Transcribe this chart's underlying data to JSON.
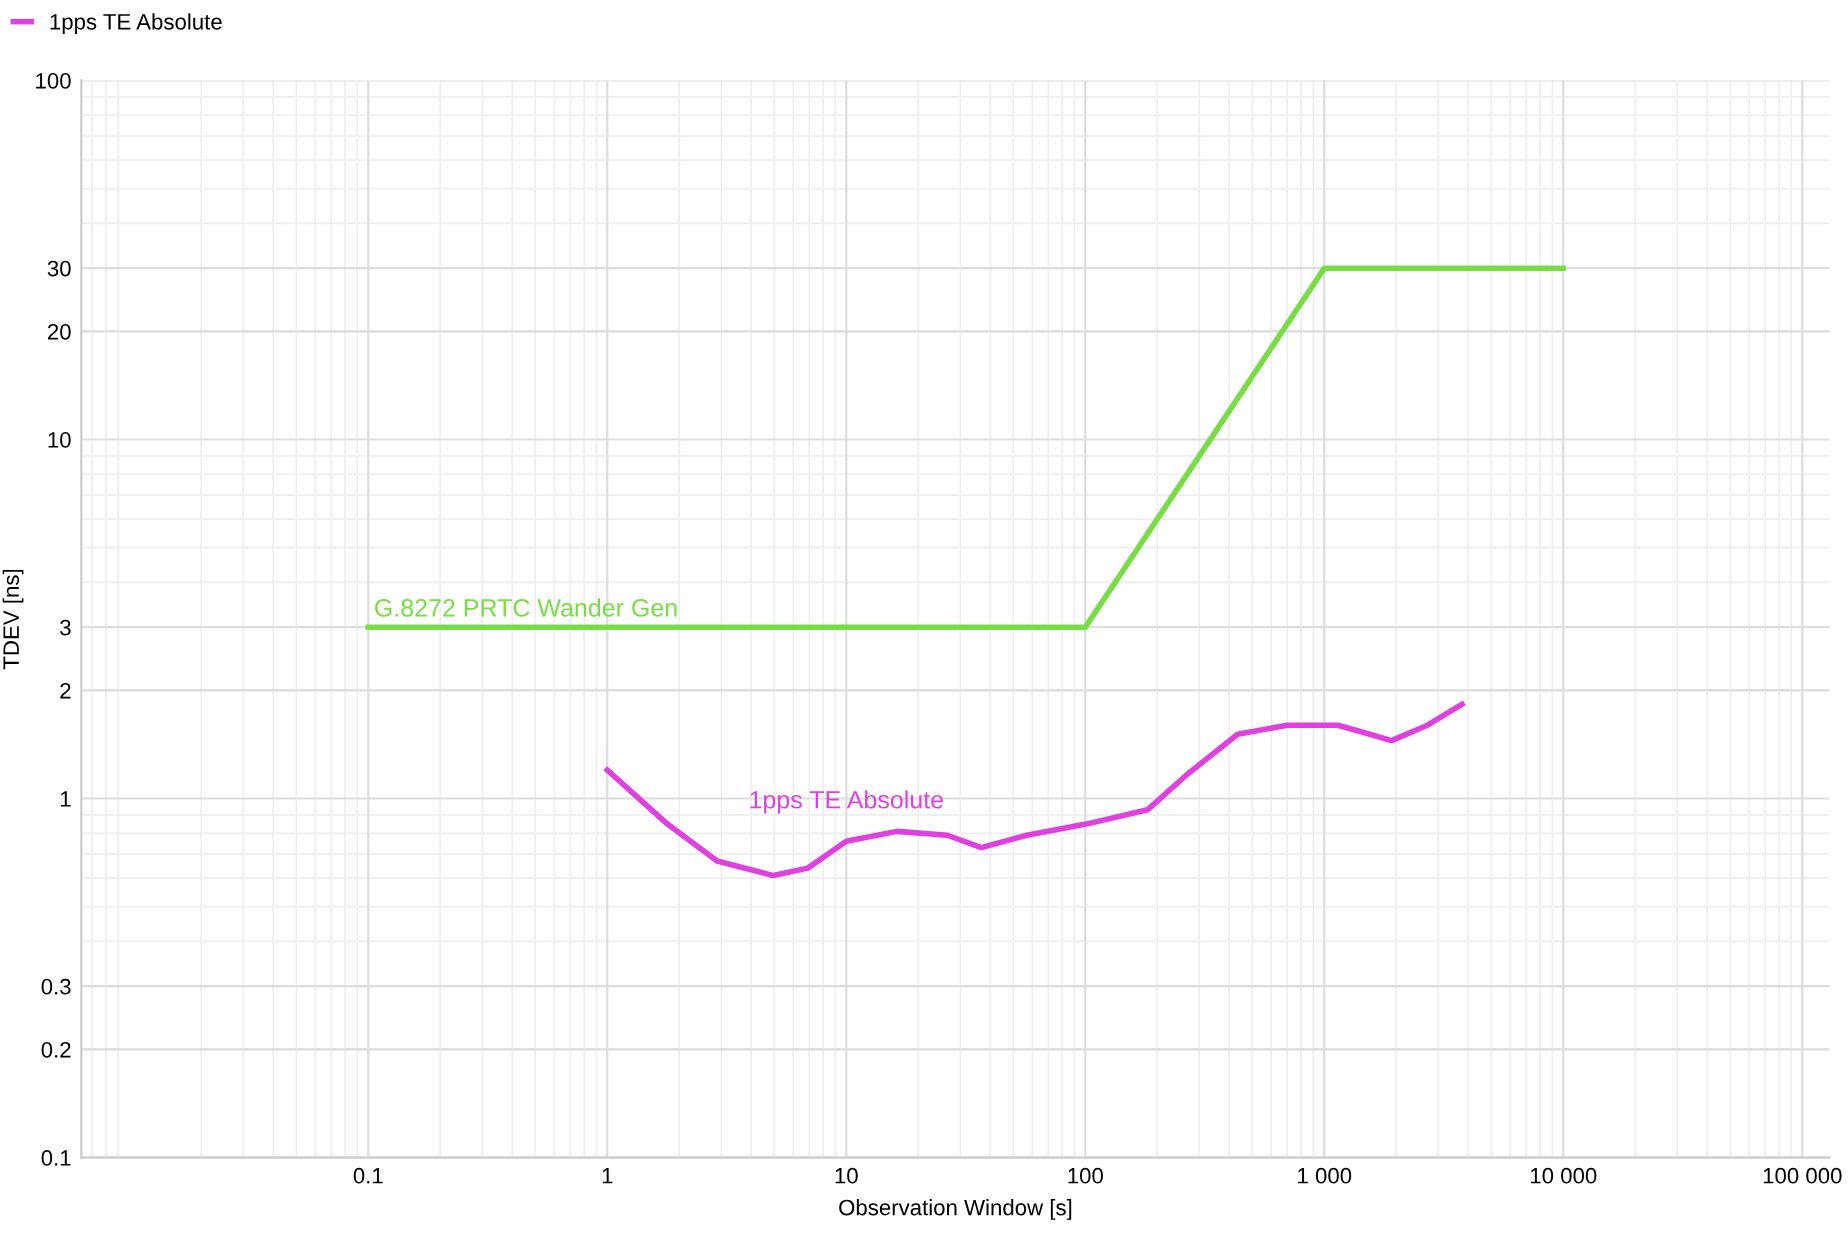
{
  "chart_data": {
    "type": "line",
    "xlabel": "Observation Window [s]",
    "ylabel": "TDEV [ns]",
    "log": "xy",
    "grid": true,
    "legend": "top left",
    "marker": "none",
    "line_style": "solid",
    "xlim": [
      0.0063,
      130000
    ],
    "xticks": [
      0.1,
      1,
      10,
      100,
      {
        "value": 1000,
        "label": "1 000"
      },
      {
        "value": 10000,
        "label": "10 000"
      },
      {
        "value": 100000,
        "label": "100 000"
      }
    ],
    "ylim": [
      0.1,
      100
    ],
    "yticks": [
      0.1,
      0.2,
      0.3,
      1,
      2,
      3,
      10,
      20,
      30,
      100
    ],
    "series": [
      {
        "color": "#e040e0",
        "name": "1pps TE Absolute",
        "x": [
          1,
          1.78,
          2.88,
          4.95,
          6.9,
          10,
          16.3,
          26.5,
          36.7,
          57,
          102,
          182,
          268,
          434,
          700,
          900,
          1140,
          1500,
          1910,
          2700,
          3770
        ],
        "values": [
          1.2,
          0.85,
          0.67,
          0.61,
          0.64,
          0.76,
          0.81,
          0.79,
          0.73,
          0.79,
          0.85,
          0.93,
          1.17,
          1.51,
          1.6,
          1.6,
          1.6,
          1.52,
          1.45,
          1.6,
          1.83
        ]
      },
      {
        "color": "#77dd44",
        "x": [
          0.1,
          100,
          1000,
          10000
        ],
        "values": [
          3,
          3,
          30,
          30
        ]
      }
    ],
    "annotations": [
      {
        "text": "G.8272 PRTC Wander Gen",
        "x": 0.1,
        "y": 3
      },
      {
        "text": "1pps TE Absolute",
        "x": 10,
        "y": 0.76
      }
    ]
  }
}
